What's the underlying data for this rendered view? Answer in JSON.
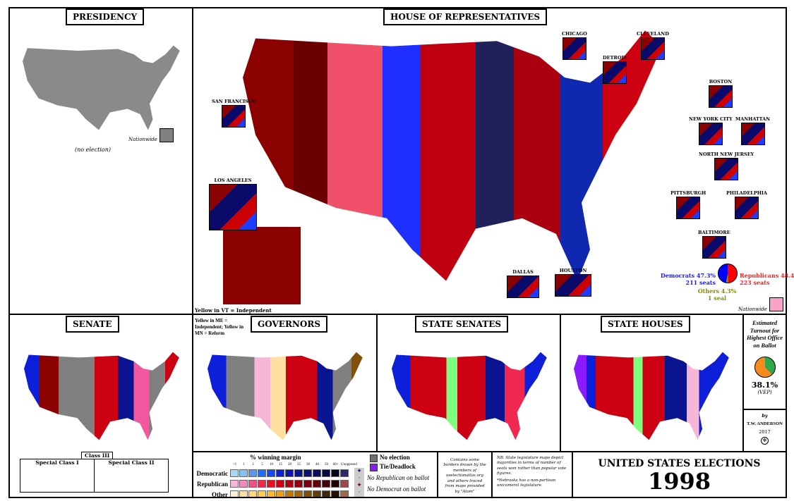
{
  "presidency": {
    "title": "PRESIDENCY",
    "note": "(no election)",
    "nationwide_label": "Nationwide",
    "nationwide_color": "#808080"
  },
  "house": {
    "title": "HOUSE OF REPRESENTATIVES",
    "insets": [
      "CHICAGO",
      "CLEVELAND",
      "DETROIT",
      "BOSTON",
      "SAN FRANCISCO",
      "NEW YORK CITY",
      "MANHATTAN",
      "NORTH NEW JERSEY",
      "LOS ANGELES",
      "PITTSBURGH",
      "PHILADELPHIA",
      "BALTIMORE",
      "DALLAS",
      "HOUSTON"
    ],
    "note_vt": "Yellow in VT = Independent",
    "dem": {
      "label": "Democrats 47.3%",
      "seats": "211 seats",
      "color": "#0000ff",
      "share": 47.3
    },
    "rep": {
      "label": "Republicans 48.4%",
      "seats": "223 seats",
      "color": "#ff0000",
      "share": 48.4
    },
    "oth": {
      "label": "Others 4.3%",
      "seats": "1 seal",
      "color": "#8b8b00",
      "share": 4.3
    },
    "nationwide_label": "Nationwide",
    "nationwide_color": "#f9a3c8"
  },
  "senate": {
    "title": "SENATE",
    "class_label": "Class III",
    "special1": "Special Class I",
    "special2": "Special Class II"
  },
  "governors": {
    "title": "GOVERNORS",
    "note": "Yellow in ME = Independent; Yellow in MN = Reform"
  },
  "state_senates": {
    "title": "STATE SENATES"
  },
  "state_houses": {
    "title": "STATE HOUSES"
  },
  "turnout": {
    "title": "Estimated Turnout for Highest Office on Ballot",
    "value": "38.1%",
    "basis": "(VEP)",
    "fraction": 0.381
  },
  "credit": {
    "by": "by",
    "author": "T.W. ANDERSON",
    "year": "2017"
  },
  "legend": {
    "title": "% winning margin",
    "ticks": [
      "<1",
      "1",
      "2",
      "5",
      "10",
      "15",
      "20",
      "25",
      "30",
      "40",
      "50",
      "60+",
      "Unopposed"
    ],
    "rows": [
      {
        "label": "Democratic",
        "colors": [
          "#a6d8f8",
          "#7fc4f5",
          "#5599ee",
          "#1f6fff",
          "#1846f0",
          "#0d1fd8",
          "#0a14b0",
          "#0a1490",
          "#0a1278",
          "#0a0a60",
          "#080848",
          "#050520",
          "#2a2a6a"
        ]
      },
      {
        "label": "Republican",
        "colors": [
          "#f7b6d8",
          "#f58ac0",
          "#f0508a",
          "#f02850",
          "#e81020",
          "#cc0010",
          "#aa0010",
          "#900010",
          "#780010",
          "#600008",
          "#450005",
          "#200202",
          "#9a4848"
        ]
      },
      {
        "label": "Other",
        "colors": [
          "#fff0d0",
          "#ffe0a0",
          "#ffd880",
          "#ffcc55",
          "#ffb830",
          "#f0a010",
          "#c07808",
          "#a06808",
          "#805008",
          "#604008",
          "#402808",
          "#201005",
          "#a06848"
        ]
      }
    ],
    "no_election": "No election",
    "no_election_color": "#707070",
    "tie": "Tie/Deadlock",
    "tie_color": "#8a1aff",
    "no_rep": "No Republican on ballot",
    "no_dem": "No Democrat on ballot"
  },
  "notes": {
    "borders": "Contains some borders drawn by the members of uselectionatlas.org and others traced from maps provided by \"Atom\"",
    "legislature": "NB. State legislature maps depict majorities in terms of number of seats won rather than popular vote figures.",
    "nebraska": "*Nebraska has a non-partisan unicameral legislature."
  },
  "main_title": {
    "line1": "UNITED STATES ELECTIONS",
    "year": "1998"
  }
}
